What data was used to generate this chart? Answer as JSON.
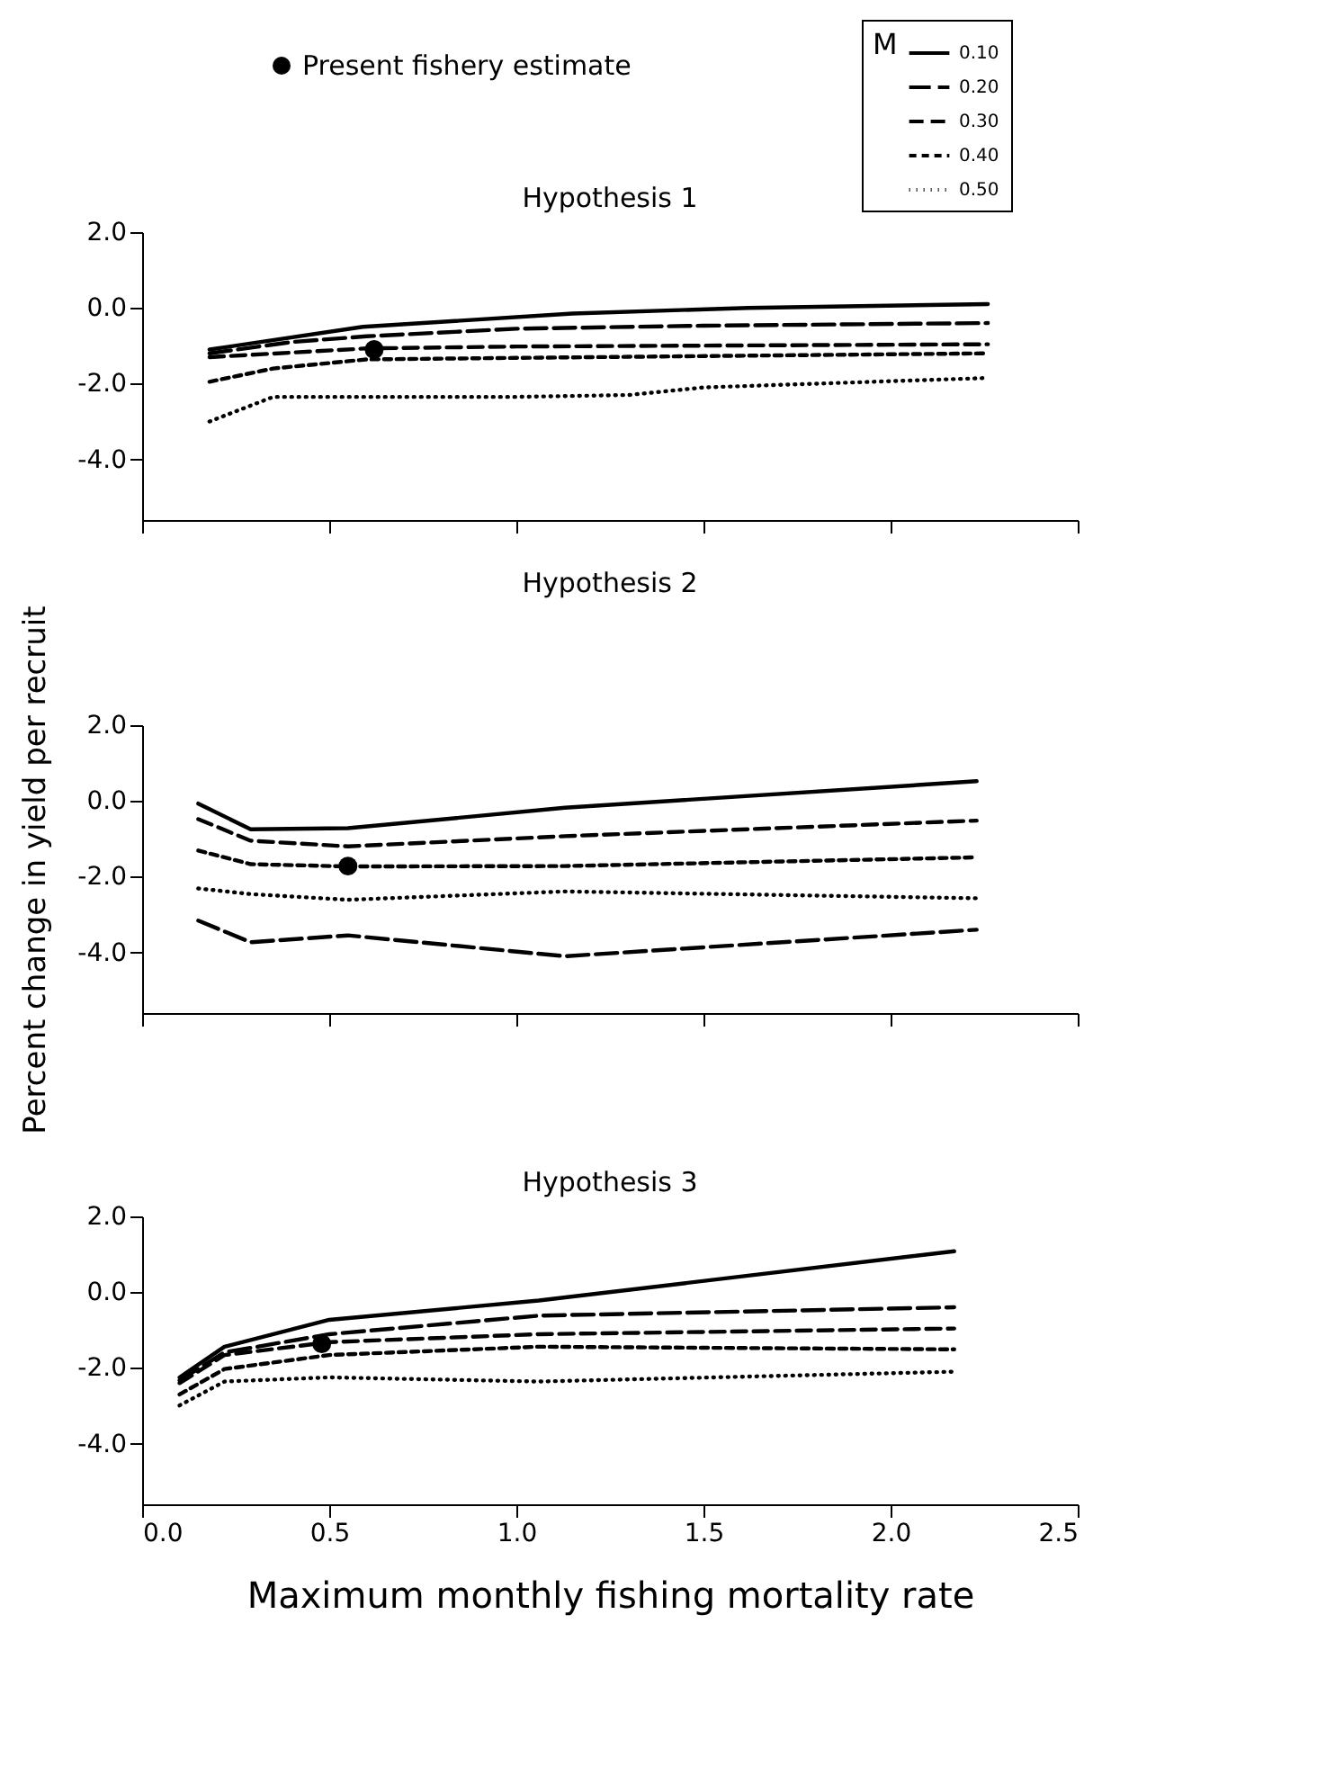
{
  "chart_data": [
    {
      "type": "line",
      "title": "Hypothesis 1",
      "legend_title": "M",
      "legend": "top right",
      "tick_labels": "y",
      "xlim": [
        0,
        2.5
      ],
      "xticks": [
        {
          "value": 0,
          "label": null
        },
        {
          "value": 0.5,
          "label": null
        },
        {
          "value": 1,
          "label": null
        },
        {
          "value": 1.5,
          "label": null
        },
        {
          "value": 2,
          "label": null
        },
        {
          "value": 2.5,
          "label": null
        }
      ],
      "ylim": [
        -5.6,
        2.0
      ],
      "yticks": [
        {
          "value": -4,
          "label": "-4.0"
        },
        {
          "value": -2,
          "label": "-2.0"
        },
        {
          "value": 0,
          "label": "0.0"
        },
        {
          "value": 2,
          "label": "2.0"
        }
      ],
      "marker": "none",
      "series": [
        {
          "name": "0.10",
          "color": "#000000",
          "line_style": "solid",
          "x": [
            0.18,
            0.59,
            1.15,
            1.62,
            2.26
          ],
          "values": [
            -1.1,
            -0.5,
            -0.15,
            0.0,
            0.1
          ]
        },
        {
          "name": "0.20",
          "color": "#000000",
          "line_style": "dashed",
          "x": [
            0.18,
            0.4,
            0.6,
            1.0,
            1.5,
            2.26
          ],
          "values": [
            -1.2,
            -0.9,
            -0.75,
            -0.55,
            -0.47,
            -0.4
          ]
        },
        {
          "name": "0.30",
          "color": "#000000",
          "line_style": "dashed",
          "x": [
            0.18,
            0.6,
            1.0,
            2.26
          ],
          "values": [
            -1.3,
            -1.07,
            -1.02,
            -0.96
          ]
        },
        {
          "name": "0.40",
          "color": "#000000",
          "line_style": "dashed",
          "x": [
            0.18,
            0.35,
            0.6,
            1.0,
            2.26
          ],
          "values": [
            -1.95,
            -1.6,
            -1.36,
            -1.32,
            -1.2
          ]
        },
        {
          "name": "0.50",
          "color": "#000000",
          "line_style": "dotted",
          "x": [
            0.18,
            0.35,
            1.0,
            1.3,
            1.5,
            2.26
          ],
          "values": [
            -3.0,
            -2.35,
            -2.35,
            -2.3,
            -2.1,
            -1.85
          ]
        },
        {
          "name": "Present fishery estimate",
          "type": "scatter",
          "marker": "circle",
          "color": "#000000",
          "x": [
            0.62
          ],
          "values": [
            -1.1
          ]
        }
      ]
    },
    {
      "type": "line",
      "title": "Hypothesis 2",
      "ylabel": "Percent change in yield per recruit",
      "tick_labels": "y",
      "xlim": [
        0,
        2.5
      ],
      "xticks": [
        {
          "value": 0,
          "label": null
        },
        {
          "value": 0.5,
          "label": null
        },
        {
          "value": 1,
          "label": null
        },
        {
          "value": 1.5,
          "label": null
        },
        {
          "value": 2,
          "label": null
        },
        {
          "value": 2.5,
          "label": null
        }
      ],
      "ylim": [
        -5.6,
        2.0
      ],
      "yticks": [
        {
          "value": -4,
          "label": "-4.0"
        },
        {
          "value": -2,
          "label": "-2.0"
        },
        {
          "value": 0,
          "label": "0.0"
        },
        {
          "value": 2,
          "label": "2.0"
        }
      ],
      "marker": "none",
      "series": [
        {
          "name": "0.10",
          "color": "#000000",
          "line_style": "solid",
          "x": [
            0.15,
            0.29,
            0.55,
            1.13,
            2.23
          ],
          "values": [
            -0.07,
            -0.75,
            -0.72,
            -0.18,
            0.52
          ]
        },
        {
          "name": "0.20",
          "color": "#000000",
          "line_style": "dashed",
          "x": [
            0.15,
            0.29,
            0.55,
            1.13,
            2.23
          ],
          "values": [
            -3.16,
            -3.73,
            -3.55,
            -4.1,
            -3.4
          ]
        },
        {
          "name": "0.30",
          "color": "#000000",
          "line_style": "dashed",
          "x": [
            0.15,
            0.29,
            0.55,
            1.13,
            2.23
          ],
          "values": [
            -0.48,
            -1.05,
            -1.2,
            -0.93,
            -0.52
          ]
        },
        {
          "name": "0.40",
          "color": "#000000",
          "line_style": "dashed",
          "x": [
            0.15,
            0.29,
            0.55,
            1.13,
            2.23
          ],
          "values": [
            -1.31,
            -1.67,
            -1.73,
            -1.72,
            -1.49
          ]
        },
        {
          "name": "0.50",
          "color": "#000000",
          "line_style": "dotted",
          "x": [
            0.15,
            0.29,
            0.55,
            1.13,
            2.23
          ],
          "values": [
            -2.31,
            -2.46,
            -2.61,
            -2.39,
            -2.57
          ]
        },
        {
          "name": "Present fishery estimate",
          "type": "scatter",
          "marker": "circle",
          "color": "#000000",
          "x": [
            0.55
          ],
          "values": [
            -1.72
          ]
        }
      ]
    },
    {
      "type": "line",
      "title": "Hypothesis 3",
      "xlabel": "Maximum monthly fishing mortality rate",
      "xlim": [
        0,
        2.5
      ],
      "xticks": [
        {
          "value": 0,
          "label": "0.0"
        },
        {
          "value": 0.5,
          "label": "0.5"
        },
        {
          "value": 1,
          "label": "1.0"
        },
        {
          "value": 1.5,
          "label": "1.5"
        },
        {
          "value": 2,
          "label": "2.0"
        },
        {
          "value": 2.5,
          "label": "2.5"
        }
      ],
      "ylim": [
        -5.6,
        2.0
      ],
      "yticks": [
        {
          "value": -4,
          "label": "-4.0"
        },
        {
          "value": -2,
          "label": "-2.0"
        },
        {
          "value": 0,
          "label": "0.0"
        },
        {
          "value": 2,
          "label": "2.0"
        }
      ],
      "marker": "none",
      "series": [
        {
          "name": "0.10",
          "color": "#000000",
          "line_style": "solid",
          "x": [
            0.1,
            0.22,
            0.5,
            1.06,
            2.17
          ],
          "values": [
            -2.25,
            -1.44,
            -0.73,
            -0.22,
            1.08
          ]
        },
        {
          "name": "0.20",
          "color": "#000000",
          "line_style": "dashed",
          "x": [
            0.1,
            0.22,
            0.5,
            1.06,
            2.17
          ],
          "values": [
            -2.33,
            -1.59,
            -1.11,
            -0.62,
            -0.4
          ]
        },
        {
          "name": "0.30",
          "color": "#000000",
          "line_style": "dashed",
          "x": [
            0.1,
            0.22,
            0.5,
            1.06,
            2.17
          ],
          "values": [
            -2.4,
            -1.66,
            -1.32,
            -1.11,
            -0.96
          ]
        },
        {
          "name": "0.40",
          "color": "#000000",
          "line_style": "dashed",
          "x": [
            0.1,
            0.22,
            0.5,
            1.06,
            2.17
          ],
          "values": [
            -2.7,
            -2.03,
            -1.66,
            -1.44,
            -1.51
          ]
        },
        {
          "name": "0.50",
          "color": "#000000",
          "line_style": "dotted",
          "x": [
            0.1,
            0.22,
            0.5,
            1.06,
            2.17
          ],
          "values": [
            -2.99,
            -2.36,
            -2.25,
            -2.36,
            -2.1
          ]
        },
        {
          "name": "Present fishery estimate",
          "type": "scatter",
          "marker": "circle",
          "color": "#000000",
          "x": [
            0.48
          ],
          "values": [
            -1.36
          ]
        }
      ]
    }
  ]
}
